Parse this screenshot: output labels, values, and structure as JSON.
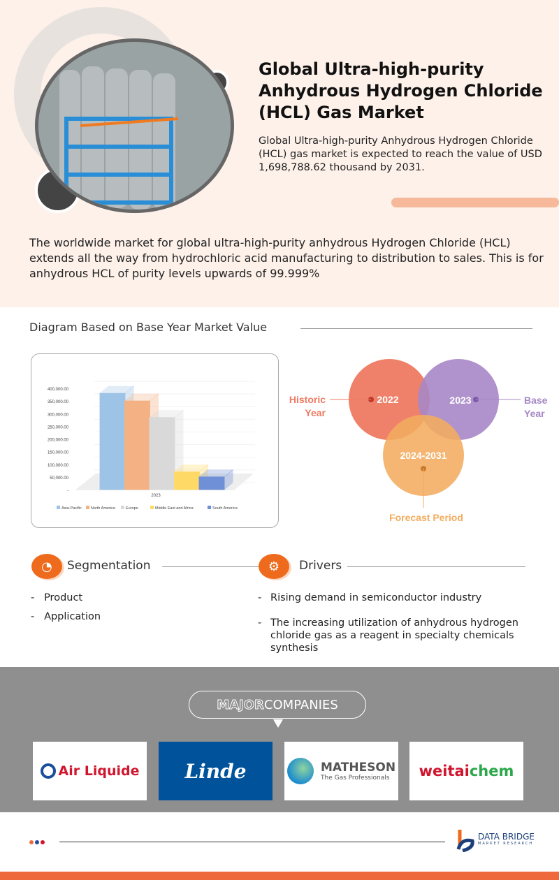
{
  "header": {
    "title": "Global Ultra-high-purity Anhydrous Hydrogen Chloride (HCL) Gas Market",
    "subtitle": "Global Ultra-high-purity Anhydrous Hydrogen Chloride (HCL) gas market is expected to reach the value of USD 1,698,788.62 thousand by 2031.",
    "intro": "The worldwide market for global ultra-high-purity anhydrous Hydrogen Chloride (HCL) extends all the way from hydrochloric acid manufacturing to distribution to sales. This is for anhydrous HCL of purity levels upwards of 99.999%"
  },
  "diagram_title": "Diagram Based on Base Year Market Value",
  "chart_data": {
    "type": "bar",
    "categories": [
      "2023"
    ],
    "series": [
      {
        "name": "Asia-Pacific",
        "values": [
          380000
        ],
        "color": "#9dc3e6"
      },
      {
        "name": "North America",
        "values": [
          350000
        ],
        "color": "#f4b183"
      },
      {
        "name": "Europe",
        "values": [
          285000
        ],
        "color": "#d9d9d9"
      },
      {
        "name": "Middle East and Africa",
        "values": [
          70000
        ],
        "color": "#ffd966"
      },
      {
        "name": "South America",
        "values": [
          50000
        ],
        "color": "#6f8fd6"
      }
    ],
    "yticks": [
      "-",
      "50,000.00",
      "100,000.00",
      "150,000.00",
      "200,000.00",
      "250,000.00",
      "300,000.00",
      "350,000.00",
      "400,000.00"
    ],
    "ylim": [
      0,
      400000
    ],
    "legend": "bottom",
    "grid": true
  },
  "venn": {
    "historic": "2022",
    "base": "2023",
    "forecast": "2024-2031",
    "historic_label": [
      "Historic",
      "Year"
    ],
    "base_label": [
      "Base",
      "Year"
    ],
    "forecast_label": "Forecast Period"
  },
  "segmentation": {
    "title": "Segmentation",
    "items": [
      "Product",
      "Application"
    ]
  },
  "drivers": {
    "title": "Drivers",
    "items": [
      "Rising demand in semiconductor industry",
      "The increasing utilization of anhydrous hydrogen chloride gas as a reagent in specialty chemicals synthesis"
    ]
  },
  "companies": {
    "title_a": "MAJOR",
    "title_b": " COMPANIES",
    "logos": [
      "Air Liquide",
      "Linde",
      "MATHESON",
      "weitaichem"
    ],
    "matheson_tag": "The Gas Professionals",
    "weitai_a": "weitai",
    "weitai_b": "chem"
  },
  "footer": {
    "brand": "DATA BRIDGE",
    "brand_sub": "MARKET RESEARCH"
  },
  "colors": {
    "accent": "#ee6a1c",
    "historic": "#ee7a62",
    "base": "#a787c6",
    "forecast": "#f2ac5e"
  }
}
